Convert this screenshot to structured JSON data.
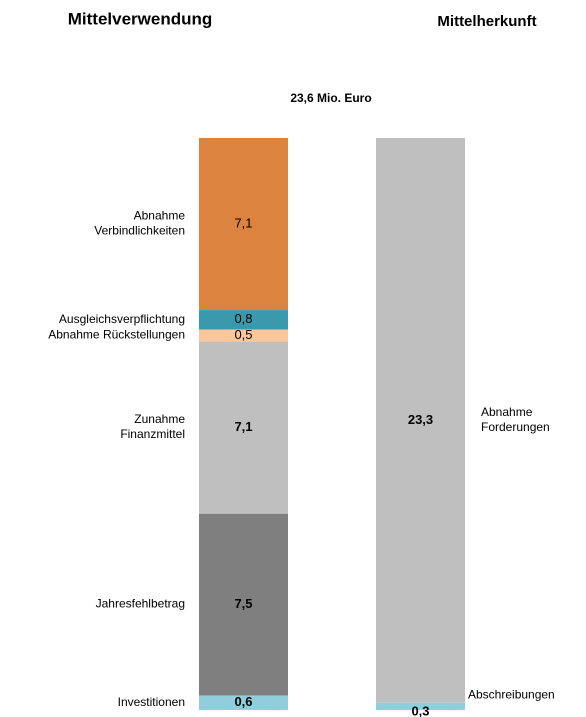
{
  "chart_data": {
    "type": "stacked_bar",
    "total_label": "23,6 Mio. Euro",
    "categories": [
      "Mittelverwendung",
      "Mittelherkunft"
    ],
    "series": [
      {
        "name": "Investitionen",
        "color": "#92cddc",
        "bold": true,
        "values": [
          0.6,
          null
        ],
        "value_labels": [
          "0,6",
          null
        ]
      },
      {
        "name": "Jahresfehlbetrag",
        "color": "#7f7f7f",
        "bold": true,
        "values": [
          7.5,
          null
        ],
        "value_labels": [
          "7,5",
          null
        ]
      },
      {
        "name": "Zunahme\nFinanzmittel",
        "color": "#bfbfbf",
        "bold": true,
        "values": [
          7.1,
          null
        ],
        "value_labels": [
          "7,1",
          null
        ]
      },
      {
        "name": "Abnahme Rückstellungen",
        "color": "#f9c79b",
        "bold": false,
        "values": [
          0.5,
          null
        ],
        "value_labels": [
          "0,5",
          null
        ]
      },
      {
        "name": "Ausgleichsverpflichtung",
        "color": "#3a99ac",
        "bold": false,
        "values": [
          0.8,
          null
        ],
        "value_labels": [
          "0,8",
          null
        ]
      },
      {
        "name": "Abnahme\nVerbindlichkeiten",
        "color": "#dc843f",
        "bold": false,
        "values": [
          7.1,
          null
        ],
        "value_labels": [
          "7,1",
          null
        ]
      },
      {
        "name": "Abschreibungen",
        "color": "#92cddc",
        "bold": true,
        "values": [
          null,
          0.3
        ],
        "value_labels": [
          null,
          "0,3"
        ]
      },
      {
        "name": "Abnahme\nForderungen",
        "color": "#bfbfbf",
        "bold": true,
        "values": [
          null,
          23.3
        ],
        "value_labels": [
          null,
          "23,3"
        ]
      }
    ]
  }
}
